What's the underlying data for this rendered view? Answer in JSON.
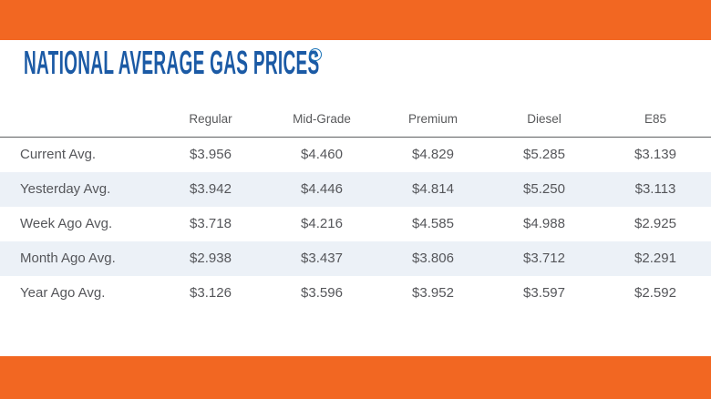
{
  "colors": {
    "accent_orange": "#F26722",
    "title_blue": "#1B5AA5",
    "stripe": "#ECF1F7",
    "table_text": "#55565A"
  },
  "title": {
    "text": "NATIONAL AVERAGE GAS PRICES",
    "info_icon_glyph": "i"
  },
  "table": {
    "columns": [
      "Regular",
      "Mid-Grade",
      "Premium",
      "Diesel",
      "E85"
    ],
    "rows": [
      {
        "label": "Current Avg.",
        "values": [
          "$3.956",
          "$4.460",
          "$4.829",
          "$5.285",
          "$3.139"
        ]
      },
      {
        "label": "Yesterday Avg.",
        "values": [
          "$3.942",
          "$4.446",
          "$4.814",
          "$5.250",
          "$3.113"
        ]
      },
      {
        "label": "Week Ago Avg.",
        "values": [
          "$3.718",
          "$4.216",
          "$4.585",
          "$4.988",
          "$2.925"
        ]
      },
      {
        "label": "Month Ago Avg.",
        "values": [
          "$2.938",
          "$3.437",
          "$3.806",
          "$3.712",
          "$2.291"
        ]
      },
      {
        "label": "Year Ago Avg.",
        "values": [
          "$3.126",
          "$3.596",
          "$3.952",
          "$3.597",
          "$2.592"
        ]
      }
    ]
  }
}
